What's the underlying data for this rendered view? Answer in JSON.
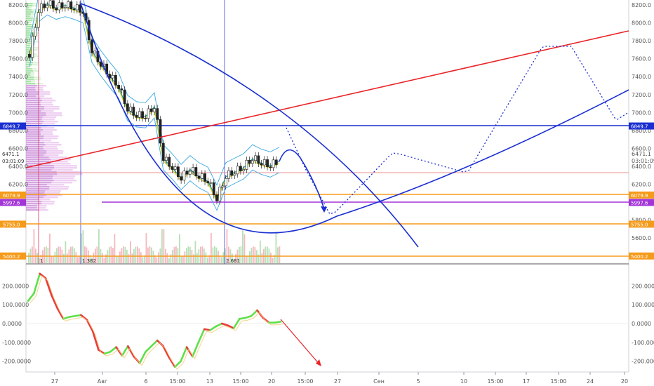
{
  "chart_data": [
    {
      "type": "candlestick",
      "price_axis": {
        "ticks": [
          "8200.0",
          "8000.0",
          "7800.0",
          "7600.0",
          "7400.0",
          "7200.0",
          "7000.0",
          "6800.0",
          "6600.0",
          "6400.0",
          "6200.0",
          "5800.0",
          "5600.0"
        ],
        "range": [
          5400,
          8300
        ]
      },
      "time_axis": {
        "ticks": [
          "27",
          "Авг",
          "6",
          "15:00",
          "13",
          "15:00",
          "20",
          "15:00",
          "27",
          "Сен",
          "5",
          "10",
          "15:00",
          "17",
          "15:00",
          "24",
          "20"
        ]
      },
      "price_tags": [
        {
          "label": "6849.7",
          "value": 6849.7,
          "color": "#1a2fd1",
          "side": "both"
        },
        {
          "label": "6079.9",
          "value": 6079.9,
          "color": "#f59b1b",
          "side": "both"
        },
        {
          "label": "5997.6",
          "value": 5997.6,
          "color": "#a234d8",
          "side": "both"
        },
        {
          "label": "5755.0",
          "value": 5755.0,
          "color": "#f59b1b",
          "side": "both"
        },
        {
          "label": "5400.2",
          "value": 5400.2,
          "color": "#f59b1b",
          "side": "both"
        }
      ],
      "last_price": {
        "label": "6471.1",
        "countdown": "03:01:09",
        "value": 6471.1
      },
      "fib_labels": [
        {
          "text": "1"
        },
        {
          "text": "1.382"
        },
        {
          "text": "2.681"
        }
      ],
      "close_path": [
        {
          "d": "Jul 24",
          "v": 7650
        },
        {
          "d": "Jul 25",
          "v": 8150
        },
        {
          "d": "Jul 26",
          "v": 8230
        },
        {
          "d": "Jul 27",
          "v": 8180
        },
        {
          "d": "Jul 28",
          "v": 8210
        },
        {
          "d": "Jul 29",
          "v": 8180
        },
        {
          "d": "Jul 30",
          "v": 8140
        },
        {
          "d": "Jul 31",
          "v": 7700
        },
        {
          "d": "Aug 1",
          "v": 7550
        },
        {
          "d": "Aug 2",
          "v": 7420
        },
        {
          "d": "Aug 3",
          "v": 7300
        },
        {
          "d": "Aug 4",
          "v": 7050
        },
        {
          "d": "Aug 5",
          "v": 6980
        },
        {
          "d": "Aug 6",
          "v": 6970
        },
        {
          "d": "Aug 7",
          "v": 7080
        },
        {
          "d": "Aug 8",
          "v": 6500
        },
        {
          "d": "Aug 9",
          "v": 6400
        },
        {
          "d": "Aug 10",
          "v": 6280
        },
        {
          "d": "Aug 11",
          "v": 6380
        },
        {
          "d": "Aug 12",
          "v": 6300
        },
        {
          "d": "Aug 13",
          "v": 6250
        },
        {
          "d": "Aug 14",
          "v": 6050
        },
        {
          "d": "Aug 15",
          "v": 6300
        },
        {
          "d": "Aug 16",
          "v": 6350
        },
        {
          "d": "Aug 17",
          "v": 6400
        },
        {
          "d": "Aug 18",
          "v": 6500
        },
        {
          "d": "Aug 19",
          "v": 6450
        },
        {
          "d": "Aug 20",
          "v": 6420
        },
        {
          "d": "Aug 21",
          "v": 6471
        }
      ],
      "oscillator": {
        "ticks": [
          "200.0000",
          "100.0000",
          "0.0000",
          "-100.0000",
          "-200.0000"
        ],
        "range": [
          -230,
          270
        ]
      }
    }
  ]
}
